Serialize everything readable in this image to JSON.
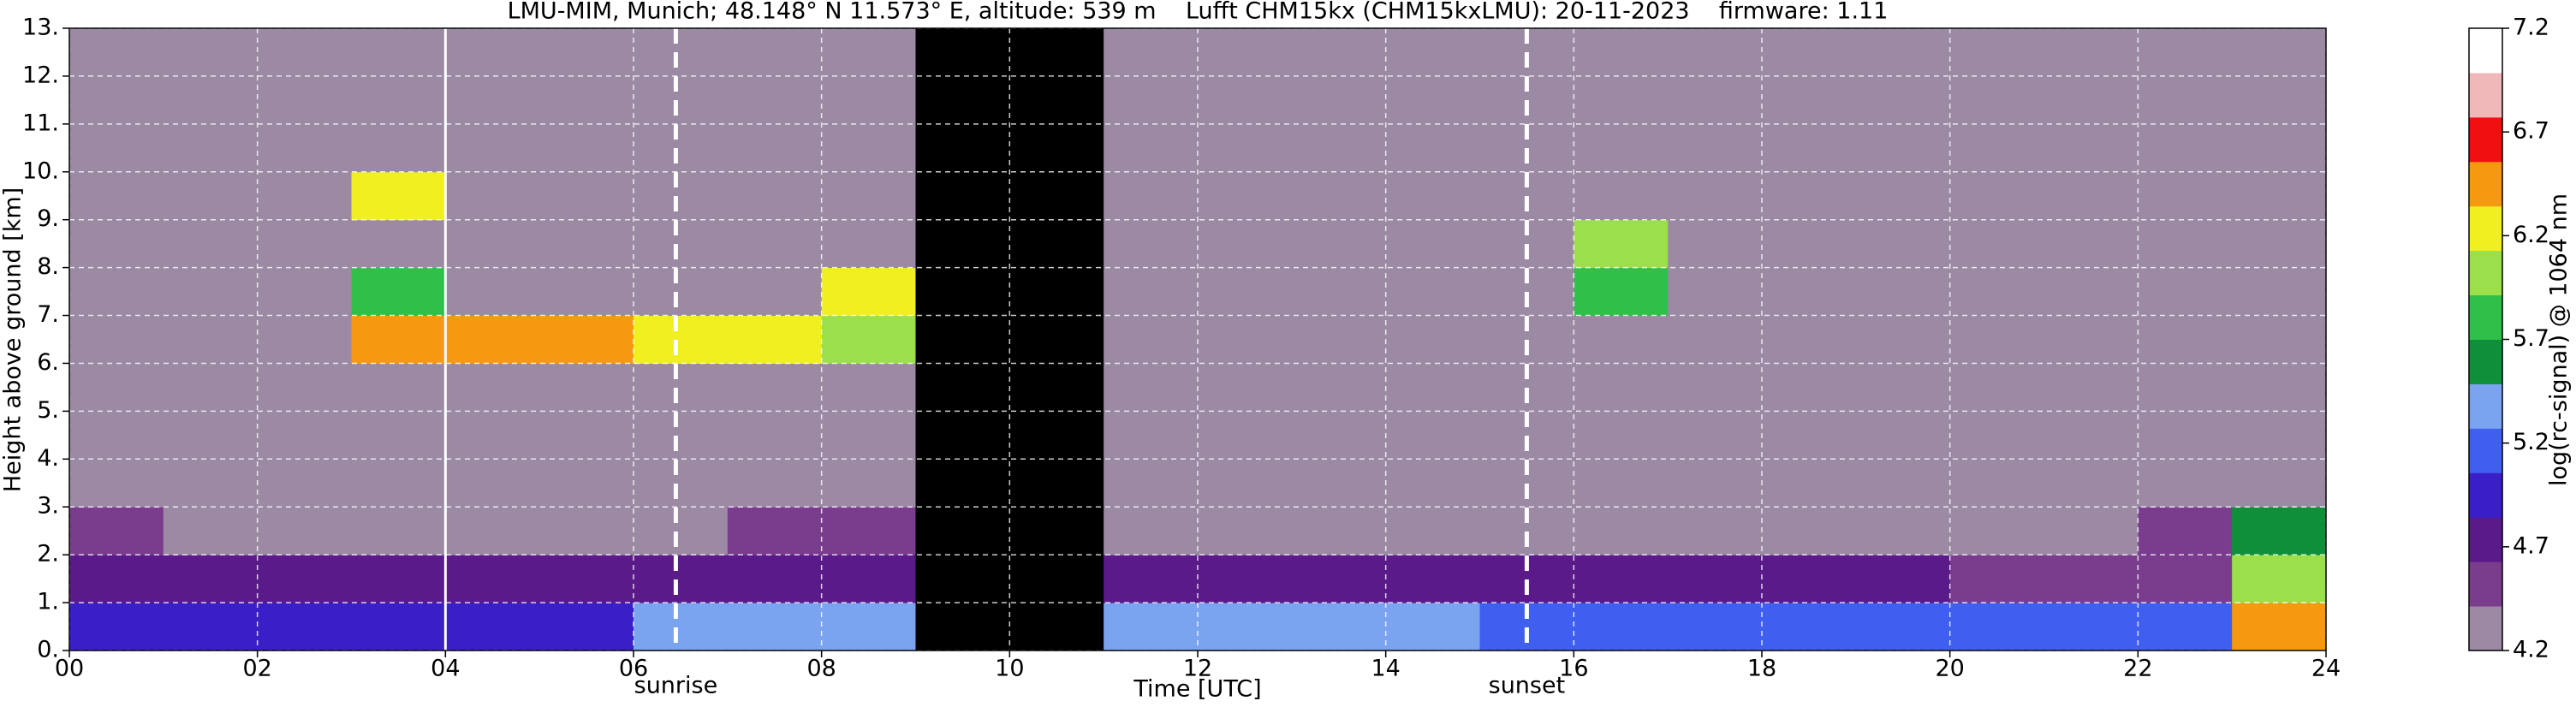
{
  "chart_data": {
    "type": "heatmap",
    "title": "LMU-MIM, Munich; 48.148° N 11.573° E, altitude: 539 m    Lufft CHM15kx (CHM15kxLMU): 20-11-2023    firmware: 1.11",
    "xlabel": "Time [UTC]",
    "ylabel": "Height above ground [km]",
    "colorbar_label": "log(rc-signal) @ 1064 nm",
    "x": [
      0,
      1,
      2,
      3,
      4,
      5,
      6,
      7,
      8,
      9,
      10,
      11,
      12,
      13,
      14,
      15,
      16,
      17,
      18,
      19,
      20,
      21,
      22,
      23,
      24
    ],
    "y": [
      0,
      1,
      2,
      3,
      4,
      5,
      6,
      7,
      8,
      9,
      10,
      11,
      12,
      13
    ],
    "z": [
      [
        4.9,
        4.9,
        4.9,
        4.9,
        4.9,
        4.9,
        5.3,
        5.3,
        5.3,
        null,
        null,
        5.3,
        5.3,
        5.3,
        5.3,
        5.1,
        5.1,
        5.1,
        5.1,
        5.1,
        5.2,
        5.2,
        5.2,
        6.5
      ],
      [
        4.7,
        4.8,
        4.8,
        4.8,
        4.8,
        4.8,
        4.7,
        4.7,
        4.7,
        null,
        null,
        4.8,
        4.8,
        4.8,
        4.8,
        4.8,
        4.8,
        4.8,
        4.8,
        4.8,
        4.6,
        4.6,
        4.6,
        6.0
      ],
      [
        4.5,
        4.4,
        4.4,
        4.4,
        4.4,
        4.4,
        4.4,
        4.5,
        4.5,
        null,
        null,
        4.4,
        4.4,
        4.4,
        4.4,
        4.4,
        4.4,
        4.4,
        4.4,
        4.4,
        4.4,
        4.4,
        4.5,
        5.5
      ],
      [
        4.4,
        4.4,
        4.4,
        4.4,
        4.4,
        4.4,
        4.4,
        4.4,
        4.4,
        null,
        null,
        4.4,
        4.4,
        4.4,
        4.4,
        4.4,
        4.4,
        4.4,
        4.4,
        4.4,
        4.4,
        4.4,
        4.4,
        4.4
      ],
      [
        4.4,
        4.4,
        4.4,
        4.4,
        4.4,
        4.4,
        4.4,
        4.4,
        4.4,
        null,
        null,
        4.4,
        4.4,
        4.4,
        4.4,
        4.4,
        4.4,
        4.4,
        4.4,
        4.4,
        4.4,
        4.4,
        4.4,
        4.4
      ],
      [
        4.4,
        4.4,
        4.4,
        4.4,
        4.4,
        4.4,
        4.4,
        4.4,
        4.4,
        null,
        null,
        4.4,
        4.4,
        4.4,
        4.4,
        4.4,
        4.4,
        4.4,
        4.4,
        4.4,
        4.4,
        4.4,
        4.4,
        4.4
      ],
      [
        4.4,
        4.4,
        4.4,
        6.5,
        6.5,
        6.5,
        6.3,
        6.3,
        6.0,
        null,
        null,
        4.4,
        4.4,
        4.4,
        4.4,
        4.4,
        4.4,
        4.4,
        4.4,
        4.4,
        4.4,
        4.4,
        4.4,
        4.4
      ],
      [
        4.4,
        4.4,
        4.4,
        5.8,
        4.4,
        4.4,
        4.4,
        4.4,
        6.2,
        null,
        null,
        4.4,
        4.4,
        4.4,
        4.4,
        4.4,
        5.8,
        4.4,
        4.4,
        4.4,
        4.4,
        4.4,
        4.4,
        4.4
      ],
      [
        4.4,
        4.4,
        4.4,
        4.4,
        4.4,
        4.4,
        4.4,
        4.4,
        4.4,
        null,
        null,
        4.4,
        4.4,
        4.4,
        4.4,
        4.4,
        6.0,
        4.4,
        4.4,
        4.4,
        4.4,
        4.4,
        4.4,
        4.4
      ],
      [
        4.4,
        4.4,
        4.4,
        6.2,
        4.4,
        4.4,
        4.4,
        4.4,
        4.4,
        null,
        null,
        4.4,
        4.4,
        4.4,
        4.4,
        4.4,
        4.4,
        4.4,
        4.4,
        4.4,
        4.4,
        4.4,
        4.4,
        4.4
      ],
      [
        4.4,
        4.4,
        4.4,
        4.4,
        4.4,
        4.4,
        4.4,
        4.4,
        4.4,
        null,
        null,
        4.4,
        4.4,
        4.4,
        4.4,
        4.4,
        4.4,
        4.4,
        4.4,
        4.4,
        4.4,
        4.4,
        4.4,
        4.4
      ],
      [
        4.4,
        4.4,
        4.4,
        4.4,
        4.4,
        4.4,
        4.4,
        4.4,
        4.4,
        null,
        null,
        4.4,
        4.4,
        4.4,
        4.4,
        4.4,
        4.4,
        4.4,
        4.4,
        4.4,
        4.4,
        4.4,
        4.4,
        4.4
      ],
      [
        4.4,
        4.4,
        4.4,
        4.4,
        4.4,
        4.4,
        4.4,
        4.4,
        4.4,
        null,
        null,
        4.4,
        4.4,
        4.4,
        4.4,
        4.4,
        4.4,
        4.4,
        4.4,
        4.4,
        4.4,
        4.4,
        4.4,
        4.4
      ]
    ],
    "colormap": [
      "#9c8aa5",
      "#7a3d8e",
      "#5a1a8a",
      "#3a1ec8",
      "#3f5ff0",
      "#7aa3f0",
      "#0f8f3a",
      "#2fc04a",
      "#9be04a",
      "#f0f020",
      "#f59a10",
      "#f01010",
      "#f0b8b8",
      "#ffffff"
    ],
    "bad_color": "#000000",
    "clim": [
      4.2,
      7.2
    ],
    "cticks": [
      4.2,
      4.7,
      5.2,
      5.7,
      6.2,
      6.7,
      7.2
    ],
    "xlim": [
      0,
      24
    ],
    "xticks": [
      {
        "value": 0,
        "label": "00"
      },
      {
        "value": 2,
        "label": "02"
      },
      {
        "value": 4,
        "label": "04"
      },
      {
        "value": 6,
        "label": "06"
      },
      {
        "value": 8,
        "label": "08"
      },
      {
        "value": 10,
        "label": "10"
      },
      {
        "value": 12,
        "label": "12"
      },
      {
        "value": 14,
        "label": "14"
      },
      {
        "value": 16,
        "label": "16"
      },
      {
        "value": 18,
        "label": "18"
      },
      {
        "value": 20,
        "label": "20"
      },
      {
        "value": 22,
        "label": "22"
      },
      {
        "value": 24,
        "label": "24"
      }
    ],
    "ylim": [
      0,
      13
    ],
    "yticks": [
      {
        "value": 0,
        "label": "0."
      },
      {
        "value": 1,
        "label": "1."
      },
      {
        "value": 2,
        "label": "2."
      },
      {
        "value": 3,
        "label": "3."
      },
      {
        "value": 4,
        "label": "4."
      },
      {
        "value": 5,
        "label": "5."
      },
      {
        "value": 6,
        "label": "6."
      },
      {
        "value": 7,
        "label": "7."
      },
      {
        "value": 8,
        "label": "8."
      },
      {
        "value": 9,
        "label": "9."
      },
      {
        "value": 10,
        "label": "10."
      },
      {
        "value": 11,
        "label": "11."
      },
      {
        "value": 12,
        "label": "12."
      },
      {
        "value": 13,
        "label": "13."
      }
    ],
    "grid": true,
    "reference_lines": [
      4
    ],
    "markers": [
      {
        "x": 6.45,
        "label": "sunrise"
      },
      {
        "x": 15.5,
        "label": "sunset"
      }
    ]
  }
}
